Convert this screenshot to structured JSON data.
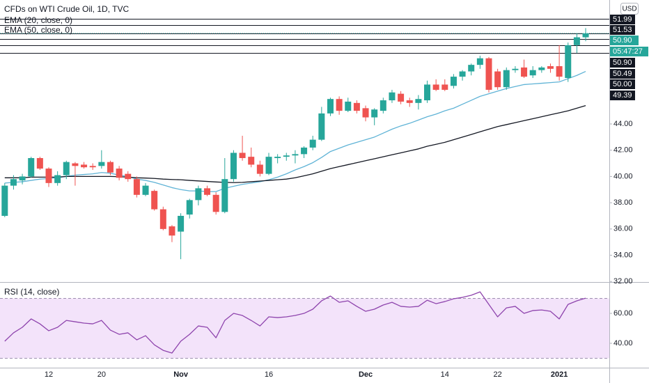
{
  "chart_data": [
    {
      "type": "candlestick",
      "title": "CFDs on WTI Crude Oil, 1D, TVC",
      "currency": "USD",
      "categories": [
        null,
        null,
        null,
        null,
        null,
        "12",
        null,
        null,
        null,
        null,
        null,
        "20",
        null,
        null,
        null,
        null,
        null,
        null,
        null,
        null,
        "Nov",
        null,
        null,
        null,
        null,
        null,
        null,
        null,
        null,
        null,
        "16",
        null,
        null,
        null,
        null,
        null,
        null,
        null,
        null,
        null,
        null,
        "Dec",
        null,
        null,
        null,
        null,
        null,
        null,
        null,
        null,
        "14",
        null,
        null,
        null,
        null,
        null,
        "22",
        null,
        null,
        null,
        null,
        null,
        null,
        "2021",
        null,
        null,
        null
      ],
      "open": [
        37.0,
        39.3,
        39.7,
        40.0,
        41.4,
        40.6,
        39.5,
        40.1,
        41.0,
        40.9,
        40.8,
        40.8,
        41.1,
        40.6,
        40.2,
        39.8,
        38.6,
        38.9,
        37.5,
        36.2,
        35.8,
        37.1,
        38.2,
        39.1,
        38.6,
        37.3,
        39.8,
        41.8,
        41.5,
        40.9,
        40.2,
        41.4,
        41.5,
        41.6,
        41.7,
        42.2,
        42.8,
        44.8,
        45.9,
        45.0,
        45.6,
        45.2,
        44.5,
        45.0,
        45.8,
        46.3,
        45.8,
        45.6,
        45.8,
        47.0,
        47.0,
        46.9,
        47.6,
        48.0,
        48.5,
        49.0,
        48.0,
        46.8,
        48.1,
        48.3,
        47.7,
        48.1,
        48.4,
        48.4,
        47.5,
        50.0,
        50.6
      ],
      "high": [
        39.5,
        40.1,
        40.2,
        41.5,
        41.5,
        40.7,
        40.4,
        41.2,
        41.1,
        41.1,
        41.0,
        42.0,
        41.2,
        40.8,
        40.4,
        40.0,
        39.5,
        39.0,
        37.7,
        36.3,
        37.2,
        38.3,
        39.3,
        39.3,
        38.8,
        41.4,
        42.0,
        43.1,
        42.2,
        41.2,
        41.8,
        41.7,
        41.8,
        42.0,
        42.3,
        43.1,
        45.3,
        46.0,
        46.1,
        46.0,
        45.8,
        45.4,
        45.2,
        46.0,
        46.6,
        46.5,
        46.0,
        46.2,
        47.3,
        47.4,
        47.4,
        47.8,
        48.1,
        48.6,
        49.2,
        49.1,
        48.2,
        48.3,
        48.4,
        48.9,
        48.4,
        48.4,
        48.6,
        50.0,
        50.2,
        50.9,
        51.3
      ],
      "low": [
        36.9,
        39.0,
        39.4,
        39.9,
        40.5,
        39.2,
        39.3,
        39.8,
        39.3,
        40.6,
        40.5,
        40.6,
        40.1,
        39.7,
        39.6,
        38.4,
        38.5,
        37.4,
        35.9,
        35.0,
        33.7,
        36.8,
        37.8,
        38.5,
        37.1,
        37.2,
        39.6,
        41.2,
        40.7,
        40.0,
        40.1,
        41.0,
        41.2,
        41.0,
        41.4,
        42.0,
        42.7,
        44.6,
        44.7,
        44.9,
        44.8,
        44.2,
        43.9,
        44.8,
        45.6,
        45.5,
        45.3,
        45.1,
        45.6,
        46.5,
        46.5,
        46.7,
        47.3,
        47.7,
        48.2,
        46.4,
        46.6,
        46.6,
        47.9,
        47.5,
        47.5,
        47.9,
        47.9,
        47.3,
        47.2,
        49.4,
        50.3
      ],
      "close": [
        39.3,
        39.8,
        40.0,
        41.4,
        40.6,
        39.5,
        40.1,
        41.1,
        40.8,
        40.7,
        40.7,
        41.1,
        40.3,
        39.9,
        39.8,
        38.6,
        39.3,
        37.5,
        36.0,
        35.5,
        37.0,
        38.2,
        39.1,
        38.6,
        37.3,
        39.8,
        41.8,
        41.4,
        40.9,
        40.2,
        41.5,
        41.5,
        41.6,
        41.7,
        42.2,
        42.8,
        44.8,
        45.9,
        45.0,
        45.7,
        45.0,
        44.5,
        45.1,
        45.8,
        46.4,
        45.7,
        45.6,
        45.9,
        47.0,
        46.6,
        46.6,
        47.6,
        48.0,
        48.5,
        49.0,
        46.6,
        46.8,
        48.1,
        48.2,
        47.6,
        48.1,
        48.3,
        48.2,
        47.6,
        50.0,
        50.6,
        50.9
      ],
      "up_color": "#26a69a",
      "down_color": "#ef5350",
      "lines": [
        {
          "name": "EMA (20, close, 0)",
          "color": "#5fb3d6",
          "values": [
            39.5,
            39.55,
            39.6,
            39.7,
            39.8,
            39.85,
            39.9,
            40.0,
            40.1,
            40.15,
            40.2,
            40.3,
            40.25,
            40.1,
            40.0,
            39.8,
            39.7,
            39.55,
            39.35,
            39.15,
            39.0,
            38.9,
            38.9,
            38.85,
            38.85,
            39.1,
            39.25,
            39.4,
            39.5,
            39.6,
            39.75,
            39.95,
            40.2,
            40.5,
            40.75,
            41.05,
            41.45,
            41.9,
            42.15,
            42.4,
            42.6,
            42.8,
            43.0,
            43.3,
            43.6,
            43.85,
            44.05,
            44.3,
            44.55,
            44.75,
            45.0,
            45.2,
            45.5,
            45.8,
            46.1,
            46.3,
            46.5,
            46.7,
            46.85,
            47.0,
            47.05,
            47.1,
            47.15,
            47.2,
            47.45,
            47.7,
            48.0
          ]
        },
        {
          "name": "EMA (50, close, 0)",
          "color": "#131722",
          "values": [
            39.9,
            39.9,
            39.9,
            39.95,
            39.95,
            39.95,
            39.95,
            40.0,
            40.0,
            40.0,
            40.0,
            40.0,
            40.0,
            39.98,
            39.95,
            39.9,
            39.88,
            39.85,
            39.8,
            39.77,
            39.75,
            39.7,
            39.66,
            39.62,
            39.58,
            39.55,
            39.53,
            39.55,
            39.6,
            39.65,
            39.7,
            39.75,
            39.8,
            39.9,
            40.05,
            40.2,
            40.4,
            40.6,
            40.75,
            40.9,
            41.05,
            41.2,
            41.35,
            41.5,
            41.65,
            41.8,
            41.95,
            42.1,
            42.3,
            42.45,
            42.6,
            42.8,
            43.0,
            43.2,
            43.4,
            43.6,
            43.8,
            43.95,
            44.1,
            44.25,
            44.4,
            44.55,
            44.7,
            44.85,
            45.0,
            45.2,
            45.4
          ]
        }
      ],
      "levels": [
        {
          "value": 51.99,
          "label": "51.99"
        },
        {
          "value": 51.53,
          "label": "51.53"
        },
        {
          "value": 50.9,
          "label": "50.90"
        },
        {
          "value": 50.49,
          "label": "50.49"
        },
        {
          "value": 50.0,
          "label": "50.00"
        },
        {
          "value": 49.39,
          "label": "49.39"
        }
      ],
      "current_price": {
        "value": 50.9,
        "label": "50.90",
        "color": "#26a69a"
      },
      "countdown": "05:47:27",
      "ylim": [
        31.96,
        53.44
      ],
      "yticks": [
        {
          "value": 32,
          "label": "32.00"
        },
        {
          "value": 34,
          "label": "34.00"
        },
        {
          "value": 36,
          "label": "36.00"
        },
        {
          "value": 38,
          "label": "38.00"
        },
        {
          "value": 40,
          "label": "40.00"
        },
        {
          "value": 42,
          "label": "42.00"
        },
        {
          "value": 44,
          "label": "44.00"
        }
      ]
    },
    {
      "type": "line",
      "title": "RSI (14, close)",
      "color": "#8e44ad",
      "values": [
        41.4,
        47,
        50.7,
        56.3,
        53,
        48.4,
        50.7,
        55.3,
        54.4,
        53.5,
        53,
        55.3,
        48.8,
        46,
        47,
        42.3,
        45.1,
        39,
        35.3,
        33.5,
        41.4,
        46,
        51.6,
        50.7,
        43.7,
        55.3,
        60,
        58.6,
        55.3,
        51.6,
        57.7,
        57.2,
        57.7,
        58.6,
        60,
        62.8,
        68.4,
        71.6,
        67.4,
        68.4,
        64.7,
        61.4,
        62.8,
        65.6,
        67.4,
        64.7,
        64.2,
        64.7,
        68.8,
        66.5,
        67.9,
        69.8,
        70.7,
        72.1,
        74.4,
        66,
        57.7,
        63.7,
        64.7,
        60,
        61.9,
        62.3,
        61.4,
        56.3,
        66,
        68.4,
        70.2
      ],
      "bands": [
        30,
        70
      ],
      "band_color": "#f3e3fa",
      "ylim": [
        23.7,
        80.5
      ],
      "yticks": [
        {
          "value": 40,
          "label": "40.00"
        },
        {
          "value": 60,
          "label": "60.00"
        }
      ]
    }
  ]
}
